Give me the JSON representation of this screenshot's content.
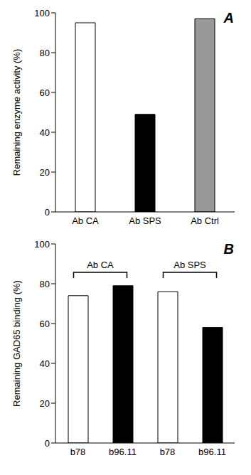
{
  "chart_data": [
    {
      "type": "bar",
      "title": "A",
      "categories": [
        "Ab CA",
        "Ab SPS",
        "Ab Ctrl"
      ],
      "values": [
        95,
        49,
        97
      ],
      "colors": [
        "#ffffff",
        "#000000",
        "#999999"
      ],
      "ylabel": "Remaining enzyme activity (%)",
      "ylim": [
        0,
        100
      ],
      "yticks": [
        0,
        20,
        40,
        60,
        80,
        100
      ]
    },
    {
      "type": "bar",
      "title": "B",
      "categories": [
        "b78",
        "b96.11",
        "b78",
        "b96.11"
      ],
      "values": [
        74,
        79,
        76,
        58
      ],
      "colors": [
        "#ffffff",
        "#000000",
        "#ffffff",
        "#000000"
      ],
      "ylabel": "Remaining GAD65 binding (%)",
      "ylim": [
        0,
        100
      ],
      "yticks": [
        0,
        20,
        40,
        60,
        80,
        100
      ],
      "annotations": [
        {
          "text": "Ab CA",
          "span": [
            0,
            1
          ]
        },
        {
          "text": "Ab SPS",
          "span": [
            2,
            3
          ]
        }
      ]
    }
  ]
}
